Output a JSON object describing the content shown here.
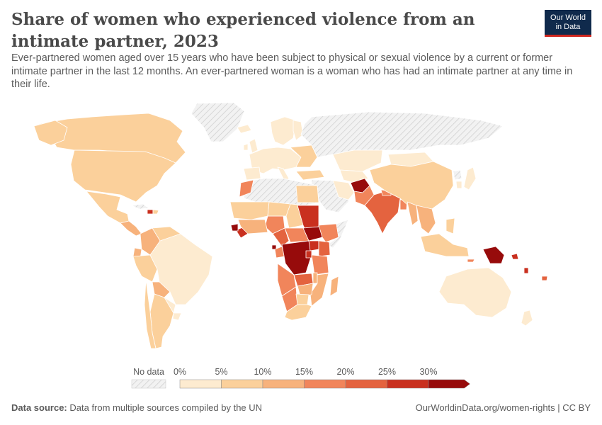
{
  "title": "Share of women who experienced violence from an intimate partner, 2023",
  "subtitle": "Ever-partnered women aged over 15 years who have been subject to physical or sexual violence by a current or former intimate partner in the last 12 months. An ever-partnered woman is a woman who has had an intimate partner at any time in their life.",
  "logo": {
    "line1": "Our World",
    "line2": "in Data"
  },
  "legend": {
    "no_data_label": "No data",
    "ticks": [
      "0%",
      "5%",
      "10%",
      "15%",
      "20%",
      "25%",
      "30%"
    ],
    "colors": [
      "#fdebd0",
      "#fbd09b",
      "#f7b27c",
      "#f1855b",
      "#e4633f",
      "#c9301f",
      "#970b0b"
    ],
    "no_data_color": "#e6e6e6"
  },
  "footer": {
    "source_label": "Data source:",
    "source_text": "Data from multiple sources compiled by the UN",
    "url_text": "OurWorldinData.org/women-rights | CC BY"
  },
  "colors": {
    "title": "#4a4a4a",
    "text": "#5b5b5b",
    "logo_bg": "#102a4c",
    "logo_accent": "#ce261e",
    "border": "#ffffff"
  }
}
